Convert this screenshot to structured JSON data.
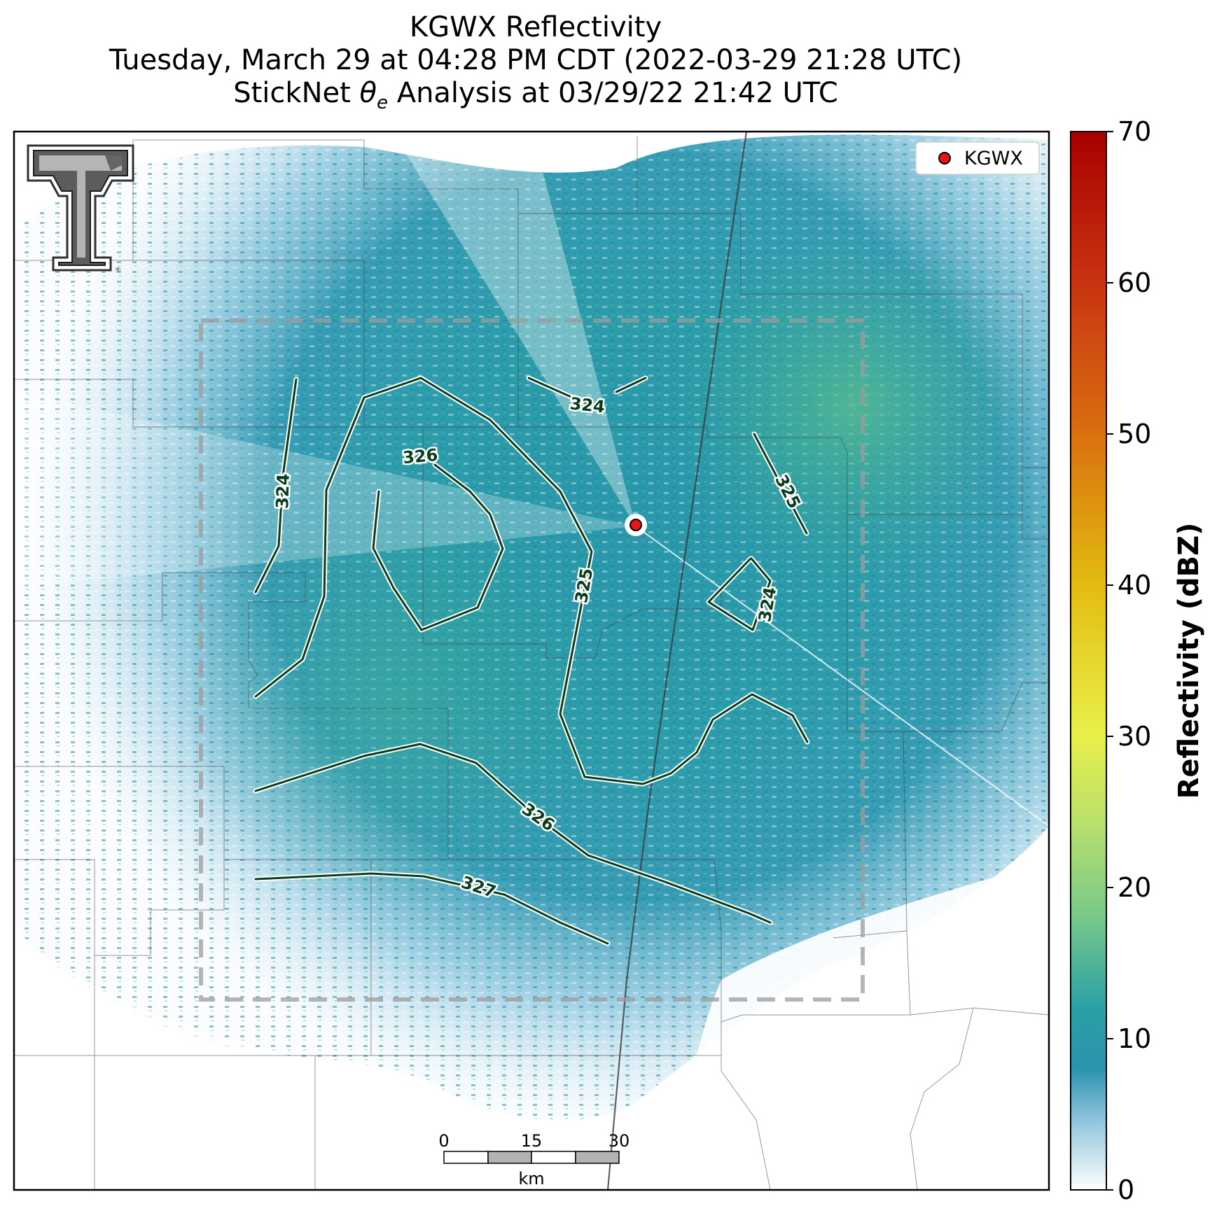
{
  "title": {
    "line1": "KGWX Reflectivity",
    "line2": "Tuesday, March 29 at 04:28 PM CDT (2022-03-29 21:28 UTC)",
    "line3_pre": "StickNet ",
    "line3_sym": "θ",
    "line3_sub": "e",
    "line3_post": " Analysis at 03/29/22 21:42 UTC"
  },
  "legend": {
    "label": "KGWX",
    "marker_color": "#e8141a"
  },
  "colorbar": {
    "label": "Reflectivity (dBZ)",
    "ticks": [
      "0",
      "10",
      "20",
      "30",
      "40",
      "50",
      "60",
      "70"
    ],
    "vmin": 0,
    "vmax": 70,
    "stops": [
      {
        "v": 0,
        "c": "#ffffff"
      },
      {
        "v": 5,
        "c": "#86bfd9"
      },
      {
        "v": 8,
        "c": "#2a93ad"
      },
      {
        "v": 12,
        "c": "#2aa0a6"
      },
      {
        "v": 18,
        "c": "#76c98a"
      },
      {
        "v": 24,
        "c": "#b6df6d"
      },
      {
        "v": 30,
        "c": "#e9f04b"
      },
      {
        "v": 40,
        "c": "#e3bc10"
      },
      {
        "v": 50,
        "c": "#d9700f"
      },
      {
        "v": 60,
        "c": "#c83410"
      },
      {
        "v": 70,
        "c": "#a80000"
      }
    ]
  },
  "contour_labels": [
    "324",
    "324",
    "326",
    "325",
    "325",
    "324",
    "326",
    "327"
  ],
  "scale_bar": {
    "ticks": [
      "0",
      "15",
      "30"
    ],
    "unit": "km"
  },
  "logo": {
    "name": "Texas Tech Double T",
    "mark": "®"
  },
  "colors": {
    "contour": "#0b3d1c",
    "radar_site": "#e8141a",
    "domain_box": "#a0a0a0"
  }
}
